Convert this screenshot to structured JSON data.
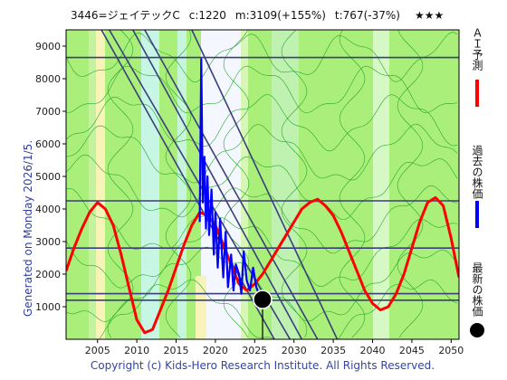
{
  "chart_data": {
    "type": "line",
    "title": "3446=ジェイテックC",
    "stats": {
      "current": "c:1220",
      "max": "m:3109(+155%)",
      "target": "t:767(-37%)"
    },
    "stars": "★★★",
    "generated": "Generated on Monday 2026/1/5.",
    "copyright": "Copyright (c) Kids-Hero Research Institute. All Rights Reserved.",
    "xlim": [
      2001,
      2051
    ],
    "ylim": [
      0,
      9500
    ],
    "x_ticks": [
      2005,
      2010,
      2015,
      2020,
      2025,
      2030,
      2035,
      2040,
      2045,
      2050
    ],
    "y_ticks": [
      1000,
      2000,
      3000,
      4000,
      5000,
      6000,
      7000,
      8000,
      9000
    ],
    "grid": false,
    "legend_position": "right",
    "legend": [
      {
        "label": "ＡＩ予測",
        "color": "#ff0000",
        "marker": "line"
      },
      {
        "label": "過去の株価",
        "color": "#0000ff",
        "marker": "line"
      },
      {
        "label": "最新の株価",
        "color": "#000000",
        "marker": "dot"
      }
    ],
    "horizontal_lines": [
      8650,
      4250,
      2800,
      1400,
      1200
    ],
    "trend_lines": [
      {
        "from": [
          2005.5,
          9500
        ],
        "to": [
          2027.5,
          0
        ]
      },
      {
        "from": [
          2006.5,
          9500
        ],
        "to": [
          2029.5,
          0
        ]
      },
      {
        "from": [
          2009.5,
          9500
        ],
        "to": [
          2031.0,
          0
        ]
      },
      {
        "from": [
          2011.0,
          9500
        ],
        "to": [
          2033.0,
          0
        ]
      },
      {
        "from": [
          2017.0,
          9500
        ],
        "to": [
          2035.5,
          0
        ]
      }
    ],
    "series": [
      {
        "name": "ＡＩ予測",
        "color": "#ff0000",
        "x": [
          2001,
          2002,
          2003,
          2004,
          2005,
          2006,
          2007,
          2008,
          2009,
          2010,
          2011,
          2012,
          2013,
          2014,
          2015,
          2016,
          2017,
          2018,
          2019,
          2020,
          2021,
          2022,
          2023,
          2024,
          2025,
          2026,
          2027,
          2028,
          2029,
          2030,
          2031,
          2032,
          2033,
          2034,
          2035,
          2036,
          2037,
          2038,
          2039,
          2040,
          2041,
          2042,
          2043,
          2044,
          2045,
          2046,
          2047,
          2048,
          2049,
          2050,
          2051
        ],
        "y": [
          2100,
          2800,
          3400,
          3900,
          4200,
          4000,
          3500,
          2600,
          1600,
          600,
          200,
          300,
          900,
          1500,
          2200,
          2900,
          3500,
          3900,
          3800,
          3500,
          2900,
          2300,
          1700,
          1500,
          1700,
          2000,
          2400,
          2800,
          3200,
          3600,
          4000,
          4200,
          4300,
          4100,
          3800,
          3300,
          2700,
          2100,
          1500,
          1100,
          900,
          1000,
          1400,
          2000,
          2800,
          3600,
          4200,
          4350,
          4100,
          3100,
          1900
        ]
      },
      {
        "name": "過去の株価",
        "color": "#0000ff",
        "x": [
          2018.0,
          2018.2,
          2018.4,
          2018.6,
          2018.8,
          2019.0,
          2019.2,
          2019.5,
          2019.8,
          2020.0,
          2020.3,
          2020.6,
          2021.0,
          2021.3,
          2021.6,
          2022.0,
          2022.3,
          2022.6,
          2023.0,
          2023.3,
          2023.6,
          2024.0,
          2024.4,
          2024.8,
          2025.2,
          2025.6,
          2026.0
        ],
        "y": [
          3600,
          8600,
          4200,
          5600,
          3400,
          5000,
          3200,
          4600,
          2600,
          3900,
          2200,
          3700,
          1900,
          3300,
          1600,
          2600,
          1500,
          2300,
          2000,
          1400,
          2700,
          1800,
          1500,
          2200,
          1600,
          1350,
          1220
        ]
      }
    ],
    "latest_point": {
      "x": 2026.0,
      "y": 1220
    }
  }
}
